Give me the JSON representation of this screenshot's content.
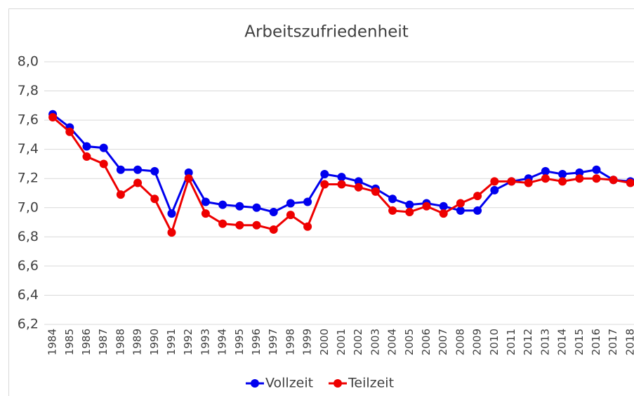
{
  "chart_data": {
    "type": "line",
    "title": "Arbeitszufriedenheit",
    "categories": [
      "1984",
      "1985",
      "1986",
      "1987",
      "1988",
      "1989",
      "1990",
      "1991",
      "1992",
      "1993",
      "1994",
      "1995",
      "1996",
      "1997",
      "1998",
      "1999",
      "2000",
      "2001",
      "2002",
      "2003",
      "2004",
      "2005",
      "2006",
      "2007",
      "2008",
      "2009",
      "2010",
      "2011",
      "2012",
      "2013",
      "2014",
      "2015",
      "2016",
      "2017",
      "2018"
    ],
    "series": [
      {
        "name": "Vollzeit",
        "color": "#0000ee",
        "values": [
          7.64,
          7.55,
          7.42,
          7.41,
          7.26,
          7.26,
          7.25,
          6.96,
          7.24,
          7.04,
          7.02,
          7.01,
          7.0,
          6.97,
          7.03,
          7.04,
          7.23,
          7.21,
          7.18,
          7.13,
          7.06,
          7.02,
          7.03,
          7.01,
          6.98,
          6.98,
          7.12,
          7.18,
          7.2,
          7.25,
          7.23,
          7.24,
          7.26,
          7.19,
          7.18
        ]
      },
      {
        "name": "Teilzeit",
        "color": "#ee0000",
        "values": [
          7.62,
          7.52,
          7.35,
          7.3,
          7.09,
          7.17,
          7.06,
          6.83,
          7.2,
          6.96,
          6.89,
          6.88,
          6.88,
          6.85,
          6.95,
          6.87,
          7.16,
          7.16,
          7.14,
          7.11,
          6.98,
          6.97,
          7.01,
          6.96,
          7.03,
          7.08,
          7.18,
          7.18,
          7.17,
          7.2,
          7.18,
          7.2,
          7.2,
          7.19,
          7.17
        ]
      }
    ],
    "ylim": [
      6.2,
      8.0
    ],
    "yticks": [
      {
        "value": 6.2,
        "label": "6,2"
      },
      {
        "value": 6.4,
        "label": "6,4"
      },
      {
        "value": 6.6,
        "label": "6,6"
      },
      {
        "value": 6.8,
        "label": "6,8"
      },
      {
        "value": 7.0,
        "label": "7,0"
      },
      {
        "value": 7.2,
        "label": "7,2"
      },
      {
        "value": 7.4,
        "label": "7,4"
      },
      {
        "value": 7.6,
        "label": "7,6"
      },
      {
        "value": 7.8,
        "label": "7,8"
      },
      {
        "value": 8.0,
        "label": "8,0"
      }
    ],
    "grid": true,
    "legend": "bottom"
  }
}
